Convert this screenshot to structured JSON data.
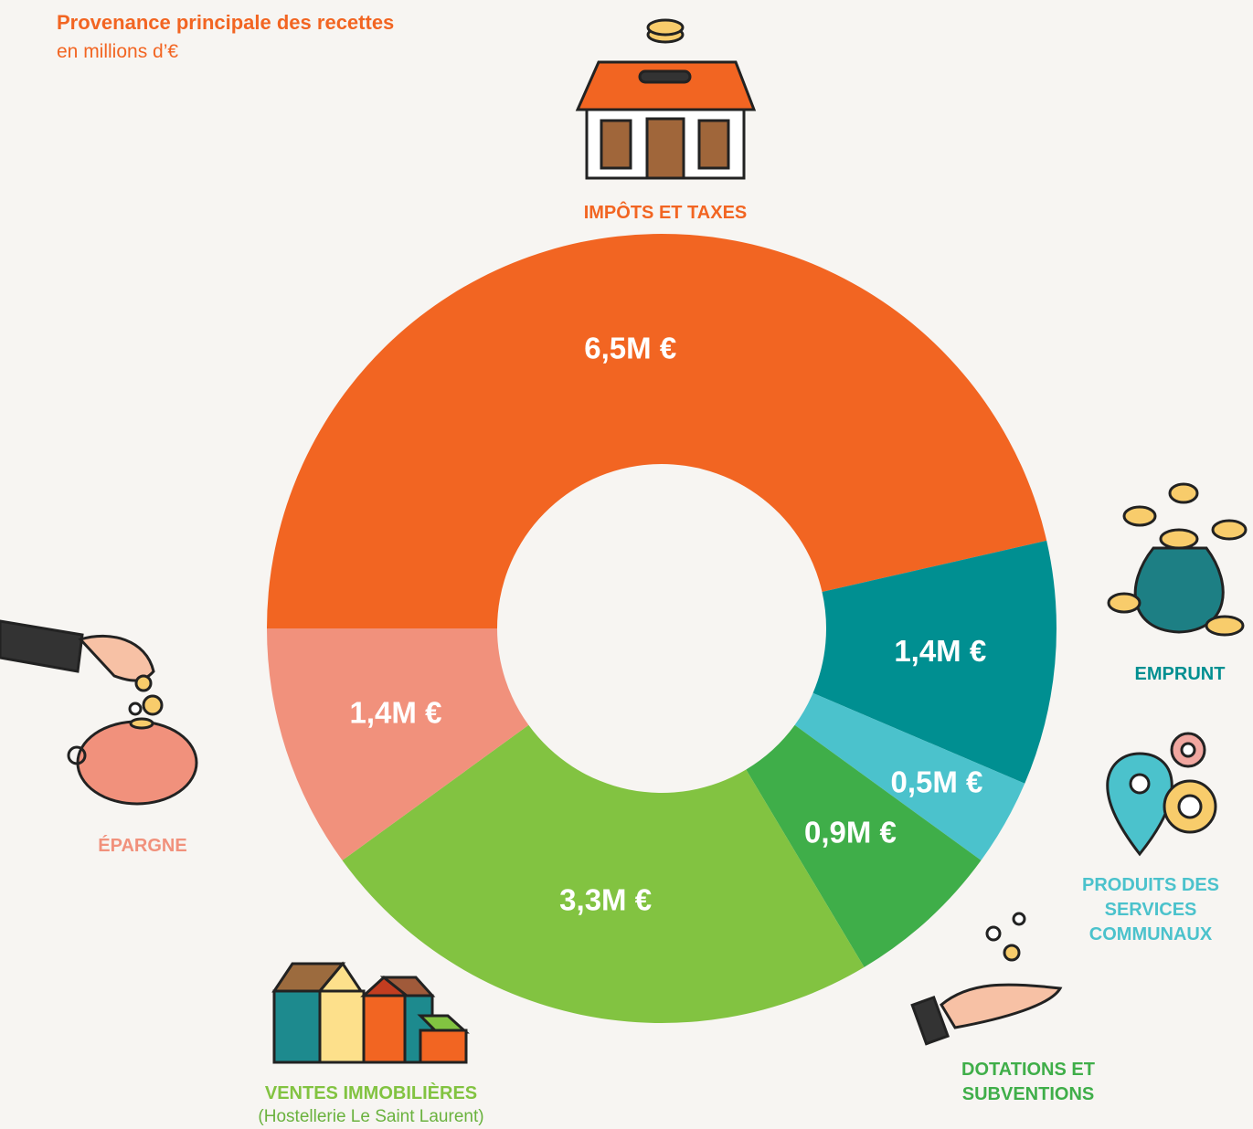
{
  "chart_data": {
    "type": "donut",
    "title": "Provenance principale des recettes",
    "subtitle": "en millions d’€",
    "categories": [
      "IMPÔTS ET TAXES",
      "EMPRUNT",
      "PRODUITS DES SERVICES COMMUNAUX",
      "DOTATIONS ET SUBVENTIONS",
      "VENTES IMMOBILIÈRES",
      "ÉPARGNE"
    ],
    "category_note": "(Hostellerie Le Saint Laurent)",
    "values": [
      6.5,
      1.4,
      0.5,
      0.9,
      3.3,
      1.4
    ],
    "value_labels": [
      "6,5M €",
      "1,4M €",
      "0,5M €",
      "0,9M €",
      "3,3M €",
      "1,4M €"
    ],
    "colors": [
      "#f26522",
      "#008f91",
      "#4bc2cc",
      "#3fae49",
      "#82c341",
      "#f1917c"
    ]
  }
}
